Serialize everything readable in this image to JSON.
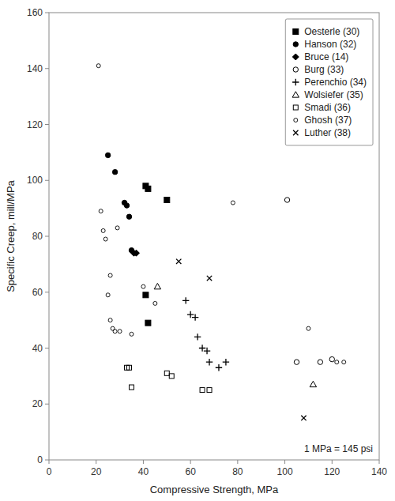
{
  "chart_data": {
    "type": "scatter",
    "xlabel": "Compressive Strength, MPa",
    "ylabel": "Specific Creep, mill/MPa",
    "annotation": "1 MPa = 145 psi",
    "xlim": [
      0,
      140
    ],
    "ylim": [
      0,
      160
    ],
    "xticks": [
      0,
      20,
      40,
      60,
      80,
      100,
      120,
      140
    ],
    "yticks": [
      0,
      20,
      40,
      60,
      80,
      100,
      120,
      140,
      160
    ],
    "grid": false,
    "legend": "upper-right",
    "series": [
      {
        "name": "Oesterle (30)",
        "color": "black",
        "marker": "square",
        "x": [
          41,
          42,
          41,
          42,
          50
        ],
        "values": [
          98,
          97,
          59,
          49,
          93
        ]
      },
      {
        "name": "Hanson (32)",
        "color": "black",
        "marker": "circle",
        "x": [
          25,
          28,
          32,
          33,
          34,
          35
        ],
        "values": [
          109,
          103,
          92,
          91,
          87,
          75
        ]
      },
      {
        "name": "Bruce (14)",
        "color": "black",
        "marker": "diamond",
        "x": [
          37,
          36
        ],
        "values": [
          74,
          74
        ]
      },
      {
        "name": "Burg (33)",
        "color": "black",
        "marker": "circle-open",
        "x": [
          101,
          105,
          115,
          120
        ],
        "values": [
          93,
          35,
          35,
          36
        ]
      },
      {
        "name": "Perenchio (34)",
        "color": "black",
        "marker": "plus",
        "x": [
          58,
          60,
          62,
          63,
          65,
          67,
          68,
          72,
          75
        ],
        "values": [
          57,
          52,
          51,
          44,
          40,
          39,
          35,
          33,
          35
        ]
      },
      {
        "name": "Wolsiefer (35)",
        "color": "black",
        "marker": "triangle-open",
        "x": [
          46,
          112
        ],
        "values": [
          62,
          27
        ]
      },
      {
        "name": "Smadi (36)",
        "color": "black",
        "marker": "square-open",
        "x": [
          33,
          34,
          35,
          50,
          52,
          65,
          68
        ],
        "values": [
          33,
          33,
          26,
          31,
          30,
          25,
          25
        ]
      },
      {
        "name": "Ghosh (37)",
        "color": "black",
        "marker": "circle-open-small",
        "x": [
          21,
          22,
          23,
          24,
          25,
          26,
          26,
          27,
          28,
          29,
          30,
          35,
          40,
          45,
          78,
          110,
          122,
          125
        ],
        "values": [
          141,
          89,
          82,
          79,
          59,
          66,
          50,
          47,
          46,
          83,
          46,
          45,
          62,
          56,
          92,
          47,
          35,
          35
        ]
      },
      {
        "name": "Luther (38)",
        "color": "black",
        "marker": "x",
        "x": [
          55,
          68,
          108
        ],
        "values": [
          71,
          65,
          15
        ]
      }
    ]
  }
}
